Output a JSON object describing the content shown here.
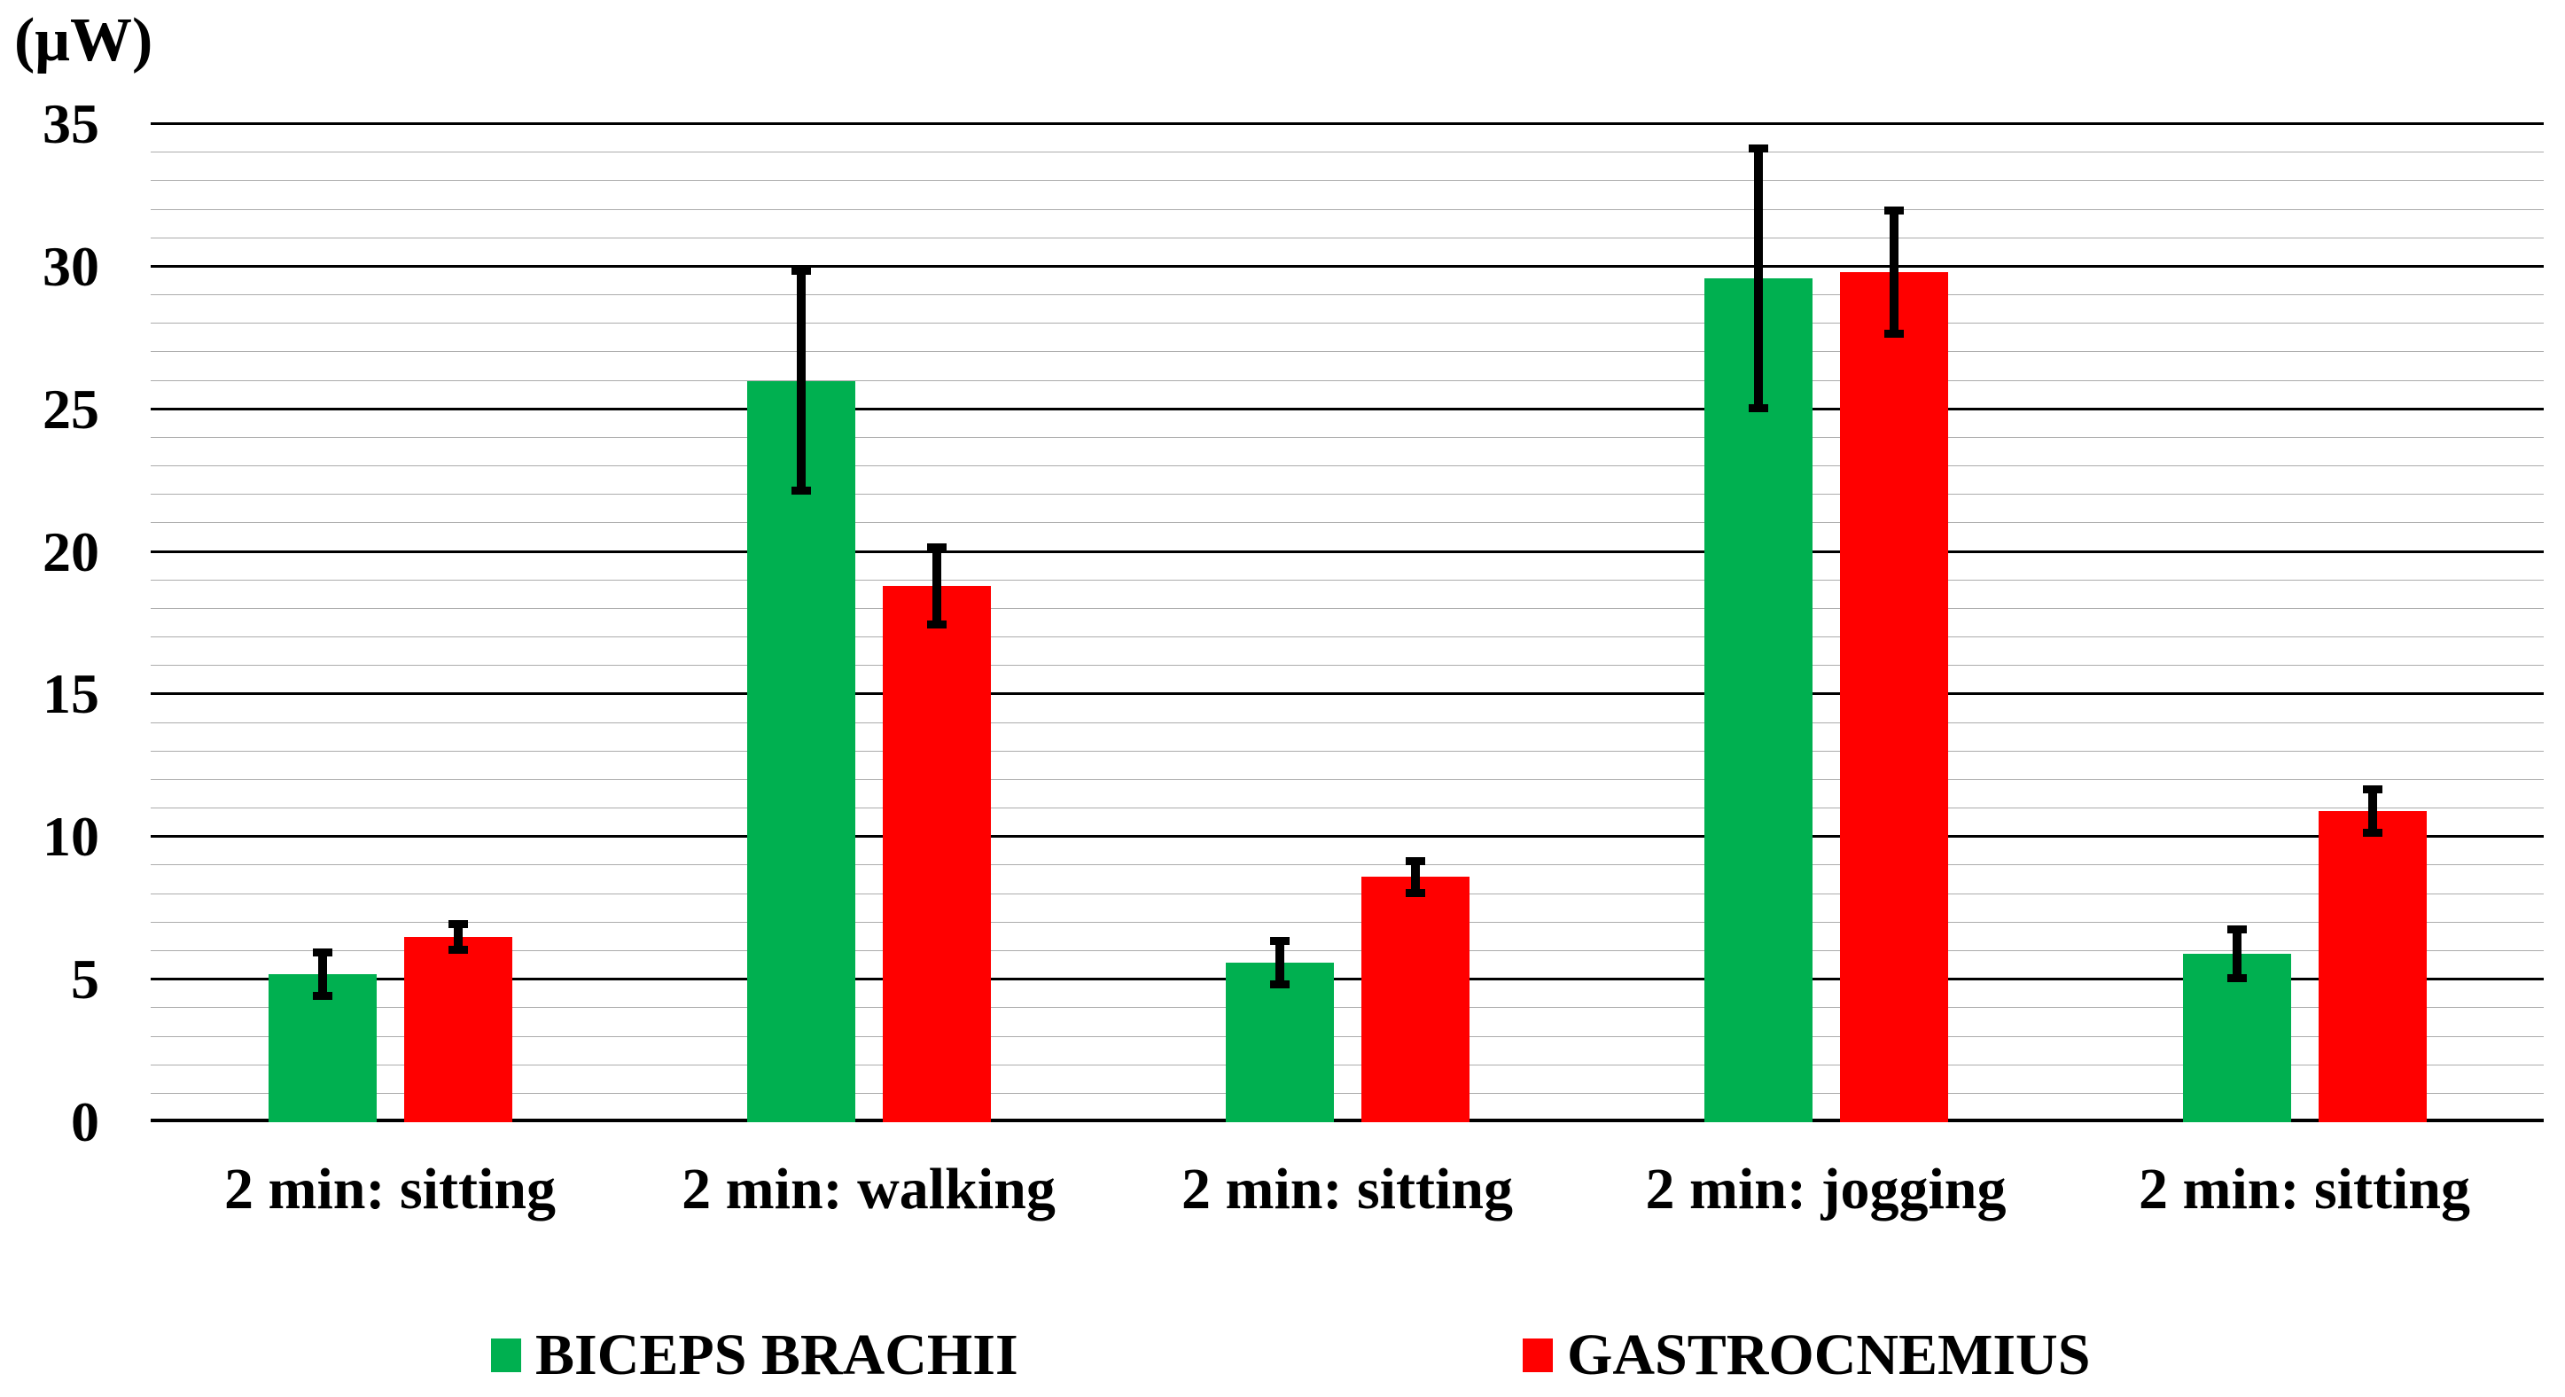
{
  "chart_data": {
    "type": "bar",
    "title": "",
    "xlabel": "",
    "ylabel": "(μW)",
    "categories": [
      "2 min: sitting",
      "2 min: walking",
      "2 min: sitting",
      "2 min: jogging",
      "2 min: sitting"
    ],
    "series": [
      {
        "name": "BICEPS BRACHII",
        "color": "#00B050",
        "values": [
          5.2,
          26.0,
          5.6,
          29.6,
          5.9
        ],
        "errors": [
          0.9,
          4.0,
          0.9,
          4.7,
          1.0
        ]
      },
      {
        "name": "GASTROCNEMIUS",
        "color": "#FF0000",
        "values": [
          6.5,
          18.8,
          8.6,
          29.8,
          10.9
        ],
        "errors": [
          0.6,
          1.5,
          0.7,
          2.3,
          0.9
        ]
      }
    ],
    "ylim": [
      0,
      35
    ],
    "y_major_step": 5,
    "y_minor_step": 1,
    "y_tick_labels": [
      "0",
      "5",
      "10",
      "15",
      "20",
      "25",
      "30",
      "35"
    ],
    "grid": true,
    "grid_major_color": "#000000",
    "grid_minor_color": "#ACACAC",
    "axis_color": "#000000",
    "error_bar_color": "#000000",
    "legend_position": "bottom",
    "background_color": "#FFFFFF"
  }
}
